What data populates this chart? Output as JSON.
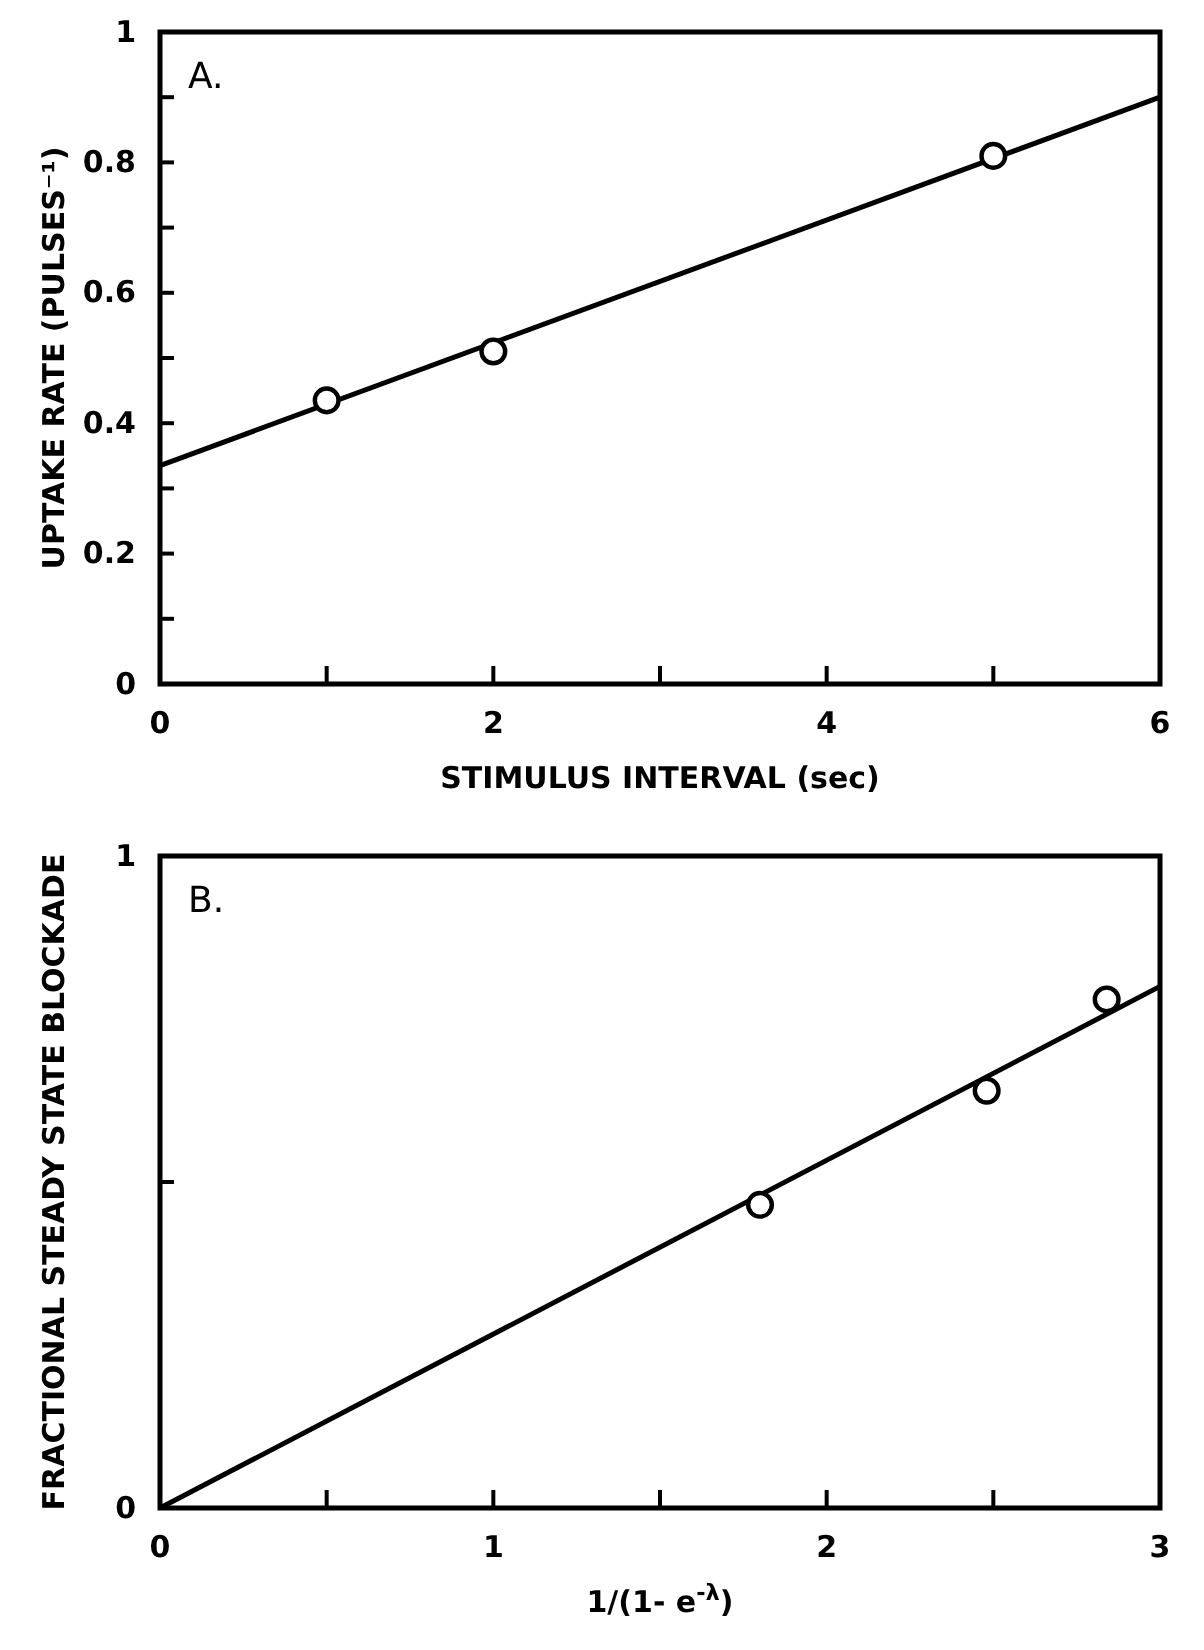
{
  "chart_data": [
    {
      "type": "scatter",
      "annotations": [
        "A."
      ],
      "xlabel": "STIMULUS  INTERVAL (sec)",
      "ylabel": "UPTAKE RATE (PULSES⁻¹)",
      "xlim": [
        0,
        6
      ],
      "xticks": [
        0,
        {
          "value": 1,
          "label": null
        },
        2,
        {
          "value": 3,
          "label": null
        },
        4,
        {
          "value": 5,
          "label": null
        },
        6
      ],
      "ylim": [
        0,
        1
      ],
      "yticks": [
        0,
        {
          "value": 0.1,
          "label": null
        },
        0.2,
        {
          "value": 0.3,
          "label": null
        },
        0.4,
        {
          "value": 0.5,
          "label": null
        },
        0.6,
        {
          "value": 0.7,
          "label": null
        },
        0.8,
        {
          "value": 0.9,
          "label": null
        },
        1
      ],
      "grid": false,
      "marker": "circle",
      "series": [
        {
          "color": "#000000",
          "x": [
            1,
            2,
            5
          ],
          "values": [
            0.435,
            0.51,
            0.81
          ]
        },
        {
          "type": "line",
          "color": "#000000",
          "marker": "none",
          "line_style": "solid",
          "x": [
            0,
            6
          ],
          "values": [
            0.335,
            0.9
          ]
        }
      ]
    },
    {
      "type": "scatter",
      "annotations": [
        "B."
      ],
      "xlabel": "1/(1- e$^{-λ}$)",
      "ylabel": "FRACTIONAL  STEADY  STATE  BLOCKADE",
      "xlim": [
        0,
        3
      ],
      "xticks": [
        0,
        {
          "value": 0.5,
          "label": null
        },
        1,
        {
          "value": 1.5,
          "label": null
        },
        2,
        {
          "value": 2.5,
          "label": null
        },
        3
      ],
      "ylim": [
        0,
        1
      ],
      "yticks": [
        0,
        {
          "value": 0.5,
          "label": null
        },
        1
      ],
      "grid": false,
      "marker": "circle",
      "series": [
        {
          "color": "#000000",
          "x": [
            1.8,
            2.48,
            2.84
          ],
          "values": [
            0.465,
            0.64,
            0.78
          ]
        },
        {
          "type": "line",
          "color": "#000000",
          "marker": "none",
          "line_style": "solid",
          "x": [
            0,
            3
          ],
          "values": [
            0,
            0.8
          ]
        }
      ]
    }
  ]
}
